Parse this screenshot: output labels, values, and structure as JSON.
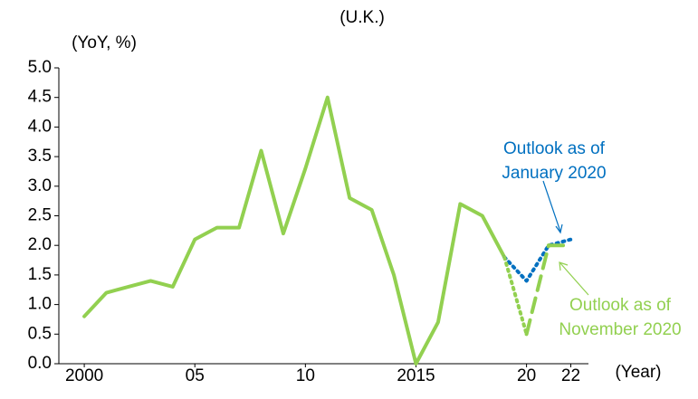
{
  "chart_data": {
    "type": "line",
    "title": "(U.K.)",
    "y_label": "(YoY, %)",
    "x_label": "(Year)",
    "xlim": [
      1998.85,
      2022.8
    ],
    "ylim": [
      0,
      5
    ],
    "yticks": [
      {
        "value": 0,
        "label": "0.0"
      },
      {
        "value": 0.5,
        "label": "0.5"
      },
      {
        "value": 1,
        "label": "1.0"
      },
      {
        "value": 1.5,
        "label": "1.5"
      },
      {
        "value": 2,
        "label": "2.0"
      },
      {
        "value": 2.5,
        "label": "2.5"
      },
      {
        "value": 3,
        "label": "3.0"
      },
      {
        "value": 3.5,
        "label": "3.5"
      },
      {
        "value": 4,
        "label": "4.0"
      },
      {
        "value": 4.5,
        "label": "4.5"
      },
      {
        "value": 5,
        "label": "5.0"
      }
    ],
    "xticks": [
      2000,
      {
        "value": 2005,
        "label": "05"
      },
      {
        "value": 2010,
        "label": "10"
      },
      2015,
      {
        "value": 2020,
        "label": "20"
      },
      {
        "value": 2022,
        "label": "22"
      }
    ],
    "series": [
      {
        "color": "#92d050",
        "style": [
          "solid"
        ],
        "x": [
          2000,
          2001,
          2002,
          2003,
          2004,
          2005,
          2006,
          2007,
          2008,
          2009,
          2010,
          2011,
          2012,
          2013,
          2014,
          2015,
          2016,
          2017,
          2018,
          2019
        ],
        "values": [
          0.8,
          1.2,
          1.3,
          1.4,
          1.3,
          2.1,
          2.3,
          2.3,
          3.6,
          2.2,
          3.3,
          4.5,
          2.8,
          2.6,
          1.5,
          0.0,
          0.7,
          2.7,
          2.5,
          1.8
        ]
      },
      {
        "color": "#0070c0",
        "style": [
          "dotted"
        ],
        "x": [
          2019,
          2020,
          2021,
          2022
        ],
        "values": [
          1.8,
          1.4,
          2.0,
          2.1
        ]
      },
      {
        "color": "#92d050",
        "style": [
          "dotted",
          "dashed",
          "dashed"
        ],
        "x": [
          2019,
          2020,
          2021,
          2022
        ],
        "values": [
          1.8,
          0.5,
          2.0,
          2.0
        ]
      }
    ],
    "annotations": [
      {
        "lines": [
          "Outlook as of",
          "January 2020"
        ],
        "color": "#0070c0"
      },
      {
        "lines": [
          "Outlook as of",
          "November 2020"
        ],
        "color": "#92d050"
      }
    ]
  }
}
